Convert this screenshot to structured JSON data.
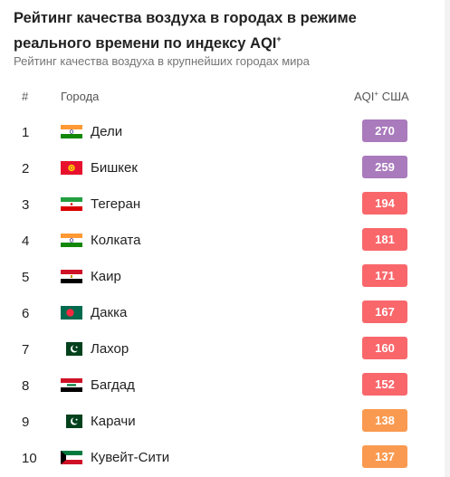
{
  "title": "Рейтинг качества воздуха в городах в режиме реального времени по индексу AQI",
  "title_sup": "+",
  "subtitle": "Рейтинг качества воздуха в крупнейших городах мира",
  "headers": {
    "rank": "#",
    "city": "Города",
    "aqi": "AQI",
    "aqi_sup": "+",
    "aqi_suffix": "США"
  },
  "colors": {
    "very_unhealthy": "#a97abc",
    "unhealthy": "#f9676b",
    "sensitive": "#fa9a50"
  },
  "rows": [
    {
      "rank": "1",
      "city": "Дели",
      "aqi": "270",
      "flag": "india-flag",
      "level": "very_unhealthy"
    },
    {
      "rank": "2",
      "city": "Бишкек",
      "aqi": "259",
      "flag": "kyrgyzstan-flag",
      "level": "very_unhealthy"
    },
    {
      "rank": "3",
      "city": "Тегеран",
      "aqi": "194",
      "flag": "iran-flag",
      "level": "unhealthy"
    },
    {
      "rank": "4",
      "city": "Колката",
      "aqi": "181",
      "flag": "india-flag",
      "level": "unhealthy"
    },
    {
      "rank": "5",
      "city": "Каир",
      "aqi": "171",
      "flag": "egypt-flag",
      "level": "unhealthy"
    },
    {
      "rank": "6",
      "city": "Дакка",
      "aqi": "167",
      "flag": "bangladesh-flag",
      "level": "unhealthy"
    },
    {
      "rank": "7",
      "city": "Лахор",
      "aqi": "160",
      "flag": "pakistan-flag",
      "level": "unhealthy"
    },
    {
      "rank": "8",
      "city": "Багдад",
      "aqi": "152",
      "flag": "iraq-flag",
      "level": "unhealthy"
    },
    {
      "rank": "9",
      "city": "Карачи",
      "aqi": "138",
      "flag": "pakistan-flag",
      "level": "sensitive"
    },
    {
      "rank": "10",
      "city": "Кувейт-Сити",
      "aqi": "137",
      "flag": "kuwait-flag",
      "level": "sensitive"
    }
  ]
}
